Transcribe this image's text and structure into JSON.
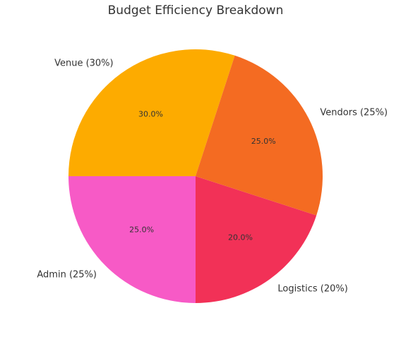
{
  "chart_data": {
    "type": "pie",
    "title": "Budget Efficiency Breakdown",
    "slices": [
      {
        "category": "Logistics (20%)",
        "value": 20.0,
        "pct_label": "20.0%",
        "color": "#f23157"
      },
      {
        "category": "Admin (25%)",
        "value": 25.0,
        "pct_label": "25.0%",
        "color": "#f75ac6"
      },
      {
        "category": "Venue (30%)",
        "value": 30.0,
        "pct_label": "30.0%",
        "color": "#fdab00"
      },
      {
        "category": "Vendors (25%)",
        "value": 25.0,
        "pct_label": "25.0%",
        "color": "#f46b22"
      }
    ],
    "start_angle_deg": -18,
    "direction": "counterclockwise",
    "legend": "none"
  }
}
